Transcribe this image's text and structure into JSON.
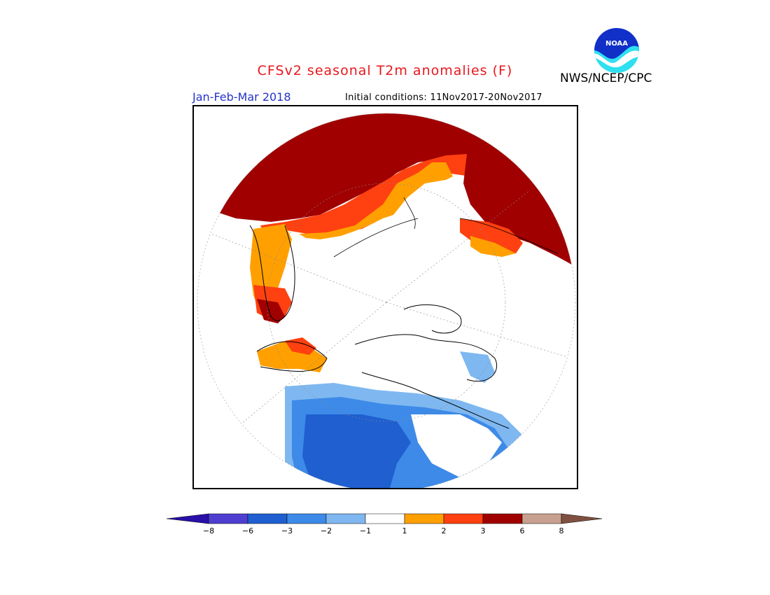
{
  "header": {
    "title": "CFSv2 seasonal T2m anomalies (F)",
    "agency": "NWS/NCEP/CPC",
    "period": "Jan-Feb-Mar 2018",
    "initial_conditions": "Initial conditions: 11Nov2017-20Nov2017"
  },
  "logo": {
    "text": "NOAA",
    "icon": "noaa-logo-icon"
  },
  "legend": {
    "colors": [
      "#2a0fa8",
      "#4f3fd0",
      "#1f5fd0",
      "#3d8ae8",
      "#7fb8f0",
      "#ffffff",
      "#ffa000",
      "#ff4010",
      "#a00000",
      "#c8a090",
      "#7f5040"
    ],
    "ticks": [
      "−8",
      "−6",
      "−3",
      "−2",
      "−1",
      "1",
      "2",
      "3",
      "6",
      "8"
    ]
  }
}
